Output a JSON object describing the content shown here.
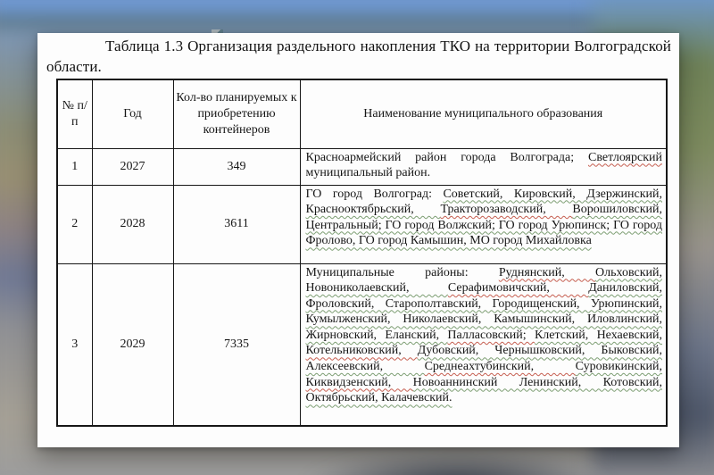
{
  "document": {
    "title": "Таблица 1.3 Организация раздельного накопления ТКО на территории Волгоградской области."
  },
  "table": {
    "headers": {
      "num": "№ п/п",
      "year": "Год",
      "containers": "Кол-во планируемых к приобретению контейнеров",
      "municipality": "Наименование муниципального образования"
    },
    "rows": [
      {
        "num": "1",
        "year": "2027",
        "containers": "349",
        "municipality_segments": [
          {
            "t": "Красноармейский район города Волгограда; "
          },
          {
            "t": "Светлоярский",
            "u": "red"
          },
          {
            "t": " муниципальный район."
          }
        ]
      },
      {
        "num": "2",
        "year": "2028",
        "containers": "3611",
        "municipality_segments": [
          {
            "t": "ГО город Волгоград: "
          },
          {
            "t": "Советский, Кировский, Дзержинский, Краснооктябрьский, ",
            "u": "green"
          },
          {
            "t": "Тракторозаводский, ",
            "u": "red"
          },
          {
            "t": "Ворошиловский, Центральный; ГО город Волжский; ГО город Урюпинск; ГО город Фролово, ГО город Камышин, МО город Михайловка",
            "u": "green"
          }
        ]
      },
      {
        "num": "3",
        "year": "2029",
        "containers": "7335",
        "municipality_segments": [
          {
            "t": "Муниципальные районы: "
          },
          {
            "t": "Руднянский, ",
            "u": "red"
          },
          {
            "t": "Ольховский, Новониколаевский, ",
            "u": "green"
          },
          {
            "t": "Серафимовичский, ",
            "u": "red"
          },
          {
            "t": "Даниловский, Фроловский, Старополтавский, Городищенский, Урюпинский, Кумылженский, Николаевский, Камышинский, Иловлинский, Жирновский, Еланский, ",
            "u": "green"
          },
          {
            "t": "Палласовский; ",
            "u": "red"
          },
          {
            "t": "Клетский, Нехаевский, ",
            "u": "green"
          },
          {
            "t": "Котельниковский, ",
            "u": "red"
          },
          {
            "t": "Дубовский, Чернышковский, Быковский, Алексеевский, ",
            "u": "green"
          },
          {
            "t": "Среднеахтубинский, ",
            "u": "red"
          },
          {
            "t": "Суровикинский, ",
            "u": "green"
          },
          {
            "t": "Киквидзенский, ",
            "u": "red"
          },
          {
            "t": "Новоаннинский Ленинский, Котовский, Октябрьский, Калачевский.",
            "u": "green"
          }
        ]
      }
    ]
  },
  "colors": {
    "spellcheck_red": "#c65f51",
    "grammar_green": "#7d9e73",
    "page_bg": "#fdfdfd"
  }
}
